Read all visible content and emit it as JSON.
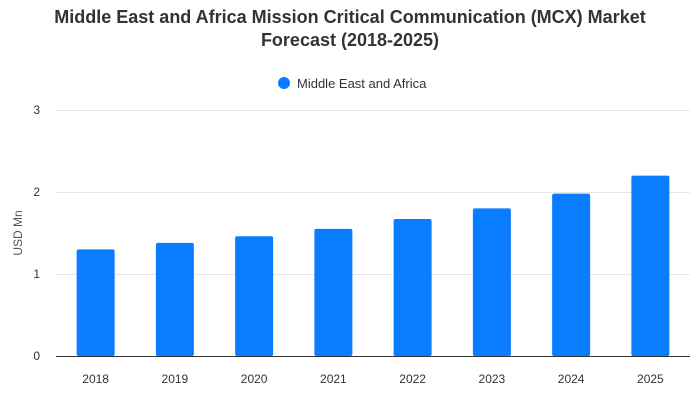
{
  "chart_data": {
    "type": "bar",
    "title_line1": "Middle East and Africa Mission Critical Communication (MCX) Market",
    "title_line2": "Forecast (2018-2025)",
    "xlabel": "",
    "ylabel": "USD Mn",
    "categories": [
      "2018",
      "2019",
      "2020",
      "2021",
      "2022",
      "2023",
      "2024",
      "2025"
    ],
    "series": [
      {
        "name": "Middle East and Africa",
        "color": "#0a7cff",
        "values": [
          1.3,
          1.38,
          1.46,
          1.55,
          1.67,
          1.8,
          1.98,
          2.2
        ]
      }
    ],
    "yticks": [
      "0",
      "1",
      "2",
      "3"
    ],
    "ylim": [
      0,
      3
    ],
    "grid": true,
    "legend_position": "top-center"
  }
}
